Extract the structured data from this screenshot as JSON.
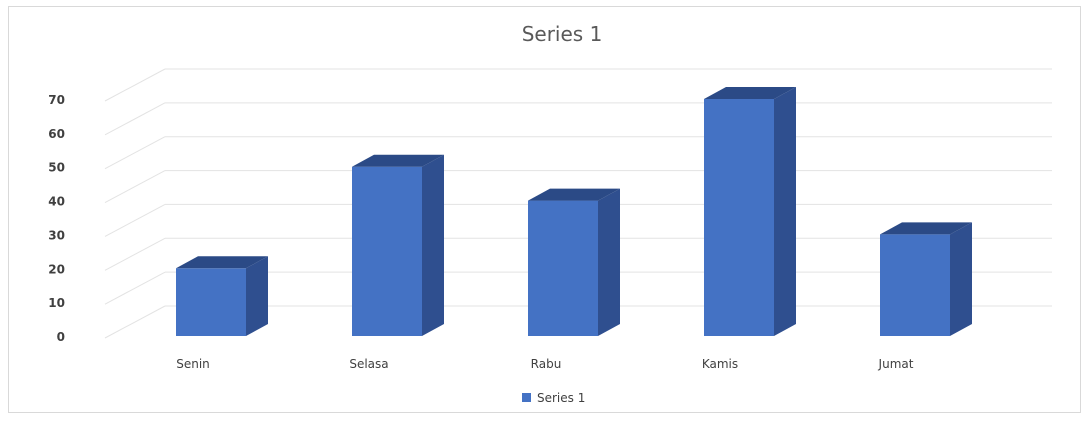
{
  "chart_data": {
    "type": "bar",
    "title": "Series 1",
    "categories": [
      "Senin",
      "Selasa",
      "Rabu",
      "Kamis",
      "Jumat"
    ],
    "series": [
      {
        "name": "Series 1",
        "values": [
          20,
          50,
          40,
          70,
          30
        ]
      }
    ],
    "yticks": [
      "0",
      "10",
      "20",
      "30",
      "40",
      "50",
      "60",
      "70"
    ],
    "ylim": [
      0,
      70
    ],
    "grid": true,
    "legend": "bottom",
    "style": "3d-column",
    "colors": {
      "front": "#4472c4",
      "side": "#2f4f8f",
      "top": "#2b4a86"
    }
  }
}
